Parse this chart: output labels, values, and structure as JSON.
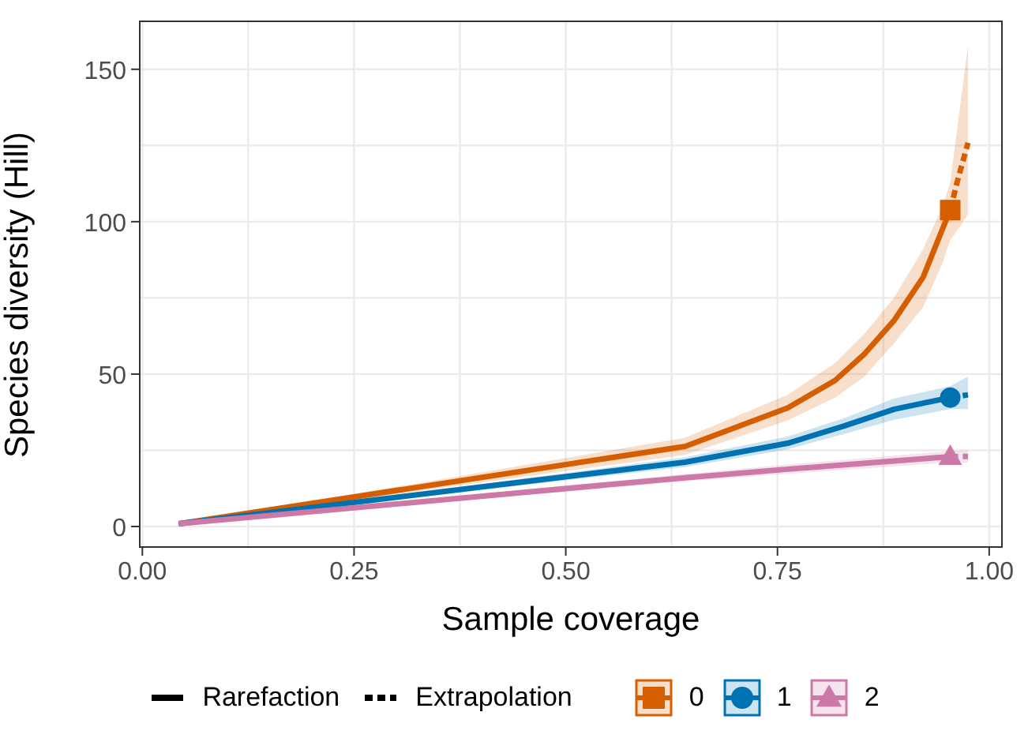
{
  "chart_data": {
    "type": "line",
    "xlabel": "Sample coverage",
    "ylabel": "Species diversity (Hill)",
    "xlim": [
      -0.004,
      1.016
    ],
    "ylim": [
      -7,
      166
    ],
    "xticks": [
      {
        "value": 0,
        "label": "0.00"
      },
      {
        "value": 0.125,
        "label": null
      },
      {
        "value": 0.25,
        "label": "0.25"
      },
      {
        "value": 0.375,
        "label": null
      },
      {
        "value": 0.5,
        "label": "0.50"
      },
      {
        "value": 0.625,
        "label": null
      },
      {
        "value": 0.75,
        "label": "0.75"
      },
      {
        "value": 0.875,
        "label": null
      },
      {
        "value": 1,
        "label": "1.00"
      }
    ],
    "yticks": [
      0,
      {
        "value": 25,
        "label": null
      },
      50,
      {
        "value": 75,
        "label": null
      },
      100,
      {
        "value": 125,
        "label": null
      },
      150
    ],
    "grid": true,
    "legend": "bottom",
    "annotations": [
      "Rarefaction",
      "Extrapolation"
    ],
    "series": [
      {
        "color": "#d55e00",
        "line_style": "solid",
        "x": [
          0.043,
          0.641,
          0.762,
          0.818,
          0.852,
          0.888,
          0.922,
          0.945,
          0.954
        ],
        "values": [
          0.9,
          26.3,
          38.9,
          47.9,
          56.4,
          67.7,
          81.8,
          97.7,
          103.8
        ],
        "lower": [
          0.9,
          23.5,
          34.8,
          42.3,
          49,
          60.2,
          72,
          86.5,
          94
        ],
        "upper": [
          0.9,
          29.1,
          43.2,
          53.6,
          63,
          75.2,
          91,
          105,
          112.8
        ]
      },
      {
        "color": "#d55e00",
        "line_style": "dashed",
        "x": [
          0.954,
          0.962,
          0.975
        ],
        "values": [
          103.8,
          112.8,
          125.9
        ],
        "lower": [
          94,
          97,
          102.4
        ],
        "upper": [
          112.8,
          130,
          157.9
        ]
      },
      {
        "type": "scatter",
        "name": "0",
        "color": "#d55e00",
        "marker": "square",
        "x": [
          0.954
        ],
        "values": [
          103.8
        ]
      },
      {
        "color": "#0072b2",
        "line_style": "solid",
        "x": [
          0.043,
          0.641,
          0.762,
          0.828,
          0.888,
          0.954
        ],
        "values": [
          0.9,
          21.1,
          27.3,
          32.9,
          38.5,
          42.3
        ],
        "lower": [
          0.9,
          19.5,
          25.3,
          30.3,
          35,
          38.5
        ],
        "upper": [
          0.9,
          22.7,
          29.5,
          35.5,
          42,
          46
        ]
      },
      {
        "color": "#0072b2",
        "line_style": "dashed",
        "x": [
          0.954,
          0.975
        ],
        "values": [
          42.3,
          43.2
        ],
        "lower": [
          38.5,
          38.5
        ],
        "upper": [
          46,
          49.2
        ]
      },
      {
        "type": "scatter",
        "name": "1",
        "color": "#0072b2",
        "marker": "circle",
        "x": [
          0.954
        ],
        "values": [
          42.3
        ]
      },
      {
        "color": "#cc79a7",
        "line_style": "solid",
        "x": [
          0.043,
          0.641,
          0.762,
          0.954
        ],
        "values": [
          0.9,
          16,
          18.8,
          22.9
        ],
        "lower": [
          0.9,
          14.8,
          17.3,
          21
        ],
        "upper": [
          0.9,
          17.2,
          20.3,
          24.8
        ]
      },
      {
        "color": "#cc79a7",
        "line_style": "dashed",
        "x": [
          0.954,
          0.975
        ],
        "values": [
          22.9,
          23
        ],
        "lower": [
          21,
          21
        ],
        "upper": [
          24.8,
          25
        ]
      },
      {
        "type": "scatter",
        "name": "2",
        "color": "#cc79a7",
        "marker": "triangle",
        "x": [
          0.954
        ],
        "values": [
          22.9
        ]
      }
    ]
  }
}
